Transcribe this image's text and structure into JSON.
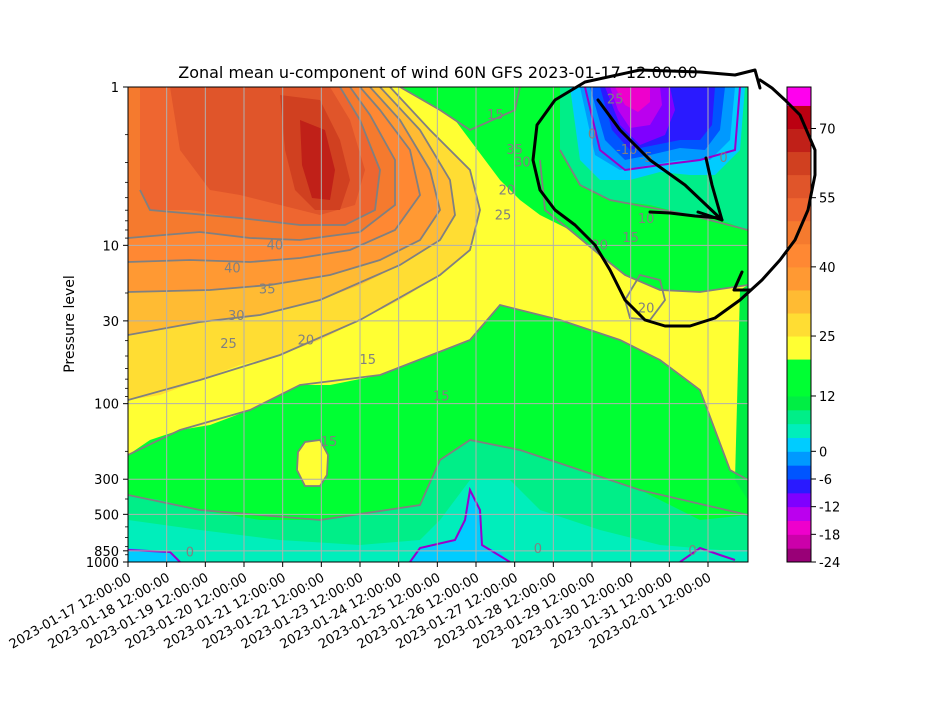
{
  "chart_data": {
    "type": "contour",
    "title": "Zonal mean u-component of wind 60N GFS 2023-01-17 12:00:00",
    "xlabel": "",
    "ylabel": "Pressure level",
    "y_scale": "log",
    "y_inverted": true,
    "ylim": [
      1000,
      1
    ],
    "y_ticks": [
      "1",
      "10",
      "30",
      "100",
      "300",
      "500",
      "850",
      "1000"
    ],
    "y_tick_values": [
      1,
      10,
      30,
      100,
      300,
      500,
      850,
      1000
    ],
    "x_ticks": [
      "2023-01-17 12:00:00",
      "2023-01-18 12:00:00",
      "2023-01-19 12:00:00",
      "2023-01-20 12:00:00",
      "2023-01-21 12:00:00",
      "2023-01-22 12:00:00",
      "2023-01-23 12:00:00",
      "2023-01-24 12:00:00",
      "2023-01-25 12:00:00",
      "2023-01-26 12:00:00",
      "2023-01-27 12:00:00",
      "2023-01-28 12:00:00",
      "2023-01-29 12:00:00",
      "2023-01-30 12:00:00",
      "2023-01-31 12:00:00",
      "2023-02-01 12:00:00"
    ],
    "grid": true,
    "colorbar": {
      "tick_labels": [
        "70",
        "55",
        "40",
        "25",
        "12",
        "0",
        "-6",
        "-12",
        "-18",
        "-24"
      ],
      "tick_values": [
        70,
        55,
        40,
        25,
        12,
        0,
        -6,
        -12,
        -18,
        -24
      ],
      "range": [
        -24,
        79
      ],
      "colors": [
        {
          "from": -24,
          "to": -21,
          "color": "#990077"
        },
        {
          "from": -21,
          "to": -18,
          "color": "#cc00aa"
        },
        {
          "from": -18,
          "to": -15,
          "color": "#ee00cc"
        },
        {
          "from": -15,
          "to": -12,
          "color": "#bb00ee"
        },
        {
          "from": -12,
          "to": -9,
          "color": "#7f00ff"
        },
        {
          "from": -9,
          "to": -6,
          "color": "#2a1aff"
        },
        {
          "from": -6,
          "to": -3,
          "color": "#0055ff"
        },
        {
          "from": -3,
          "to": 0,
          "color": "#0099ff"
        },
        {
          "from": 0,
          "to": 3,
          "color": "#00ccff"
        },
        {
          "from": 3,
          "to": 6,
          "color": "#00eebb"
        },
        {
          "from": 6,
          "to": 9,
          "color": "#00ee88"
        },
        {
          "from": 9,
          "to": 12,
          "color": "#00ee44"
        },
        {
          "from": 12,
          "to": 20,
          "color": "#00ff33"
        },
        {
          "from": 20,
          "to": 25,
          "color": "#ffff33"
        },
        {
          "from": 25,
          "to": 30,
          "color": "#ffdd33"
        },
        {
          "from": 30,
          "to": 35,
          "color": "#ffbb33"
        },
        {
          "from": 35,
          "to": 40,
          "color": "#ff9933"
        },
        {
          "from": 40,
          "to": 45,
          "color": "#ff8833"
        },
        {
          "from": 45,
          "to": 50,
          "color": "#f57a2e"
        },
        {
          "from": 50,
          "to": 55,
          "color": "#ee6630"
        },
        {
          "from": 55,
          "to": 60,
          "color": "#e0552a"
        },
        {
          "from": 60,
          "to": 65,
          "color": "#d04020"
        },
        {
          "from": 65,
          "to": 70,
          "color": "#c02018"
        },
        {
          "from": 70,
          "to": 75,
          "color": "#bb0011"
        },
        {
          "from": 75,
          "to": 79,
          "color": "#ff00ee"
        }
      ]
    },
    "contour_labels": [
      {
        "text": "15",
        "x_day": 9.5,
        "p": 1.5
      },
      {
        "text": "30",
        "x_day": 10.2,
        "p": 3
      },
      {
        "text": "20",
        "x_day": 9.8,
        "p": 4.5
      },
      {
        "text": "35",
        "x_day": 10.0,
        "p": 2.5
      },
      {
        "text": "25",
        "x_day": 9.7,
        "p": 6.5
      },
      {
        "text": "40",
        "x_day": 3.8,
        "p": 10
      },
      {
        "text": "40",
        "x_day": 2.7,
        "p": 14
      },
      {
        "text": "35",
        "x_day": 3.6,
        "p": 19
      },
      {
        "text": "30",
        "x_day": 2.8,
        "p": 28
      },
      {
        "text": "25",
        "x_day": 2.6,
        "p": 42
      },
      {
        "text": "20",
        "x_day": 4.6,
        "p": 40
      },
      {
        "text": "15",
        "x_day": 6.2,
        "p": 53
      },
      {
        "text": "15",
        "x_day": 8.1,
        "p": 90
      },
      {
        "text": "15",
        "x_day": 5.2,
        "p": 175
      },
      {
        "text": "20",
        "x_day": 12.2,
        "p": 10
      },
      {
        "text": "20",
        "x_day": 13.4,
        "p": 25
      },
      {
        "text": "15",
        "x_day": 13.0,
        "p": 9
      },
      {
        "text": "10",
        "x_day": 13.4,
        "p": 6.8
      },
      {
        "text": "-10",
        "x_day": 12.9,
        "p": 2.5
      },
      {
        "text": "-5",
        "x_day": 13.4,
        "p": 2.8
      },
      {
        "text": "25",
        "x_day": 12.6,
        "p": 1.2
      },
      {
        "text": "0",
        "x_day": 12.0,
        "p": 2
      },
      {
        "text": "0",
        "x_day": 15.4,
        "p": 2.8
      },
      {
        "text": "0",
        "x_day": 1.6,
        "p": 870
      },
      {
        "text": "0",
        "x_day": 10.6,
        "p": 830
      },
      {
        "text": "0",
        "x_day": 14.6,
        "p": 850
      }
    ]
  }
}
